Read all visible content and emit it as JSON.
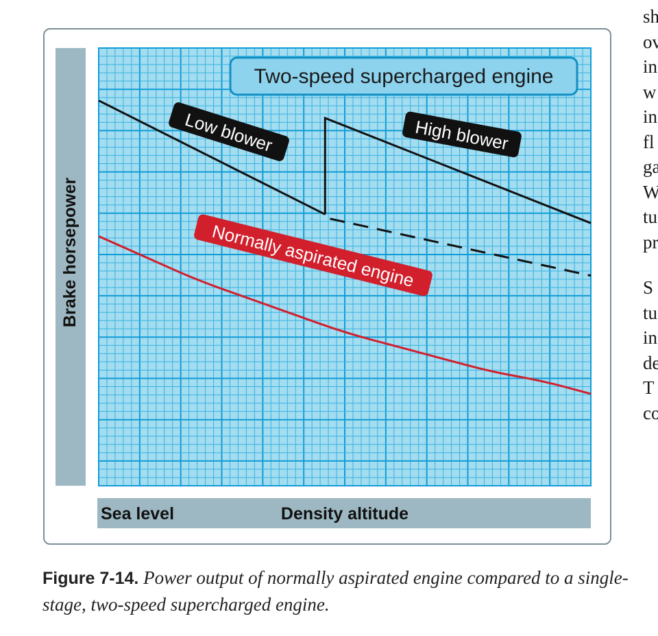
{
  "chart_data": {
    "type": "line",
    "title": "Two-speed supercharged engine",
    "xlabel": "Density altitude",
    "ylabel": "Brake horsepower",
    "x_start_label": "Sea level",
    "xlim": [
      0,
      100
    ],
    "ylim": [
      0,
      100
    ],
    "grid": true,
    "series": [
      {
        "name": "Low blower",
        "style": "solid",
        "color": "#111111",
        "x": [
          0,
          46
        ],
        "y": [
          88,
          62
        ]
      },
      {
        "name": "High blower",
        "style": "solid",
        "color": "#111111",
        "x": [
          46,
          46,
          100
        ],
        "y": [
          62,
          84,
          60
        ]
      },
      {
        "name": "Low blower (continued)",
        "style": "dashed",
        "color": "#111111",
        "x": [
          47,
          100
        ],
        "y": [
          61,
          48
        ]
      },
      {
        "name": "Normally aspirated engine",
        "style": "solid",
        "color": "#d11f2c",
        "x": [
          0,
          10,
          20,
          30,
          40,
          50,
          60,
          70,
          80,
          90,
          100
        ],
        "y": [
          57,
          52,
          47,
          43,
          39,
          35,
          32,
          29,
          26,
          24,
          21
        ]
      }
    ]
  },
  "figure": {
    "caption_number": "Figure 7-14.",
    "caption_text": "Power output of normally aspirated engine compared to a single-stage, two-speed supercharged engine."
  },
  "body_text_fragments": [
    "sh",
    "ov",
    "in",
    "w",
    "in",
    "fl",
    "ga",
    "W",
    "tu",
    "pr",
    "S",
    "tu",
    "in",
    "de",
    "T",
    "co"
  ],
  "colors": {
    "plot_bg": "#a4dcf0",
    "grid_major": "#0f9dd6",
    "grid_minor": "#37b3e2",
    "axis_bar": "#9db8c2",
    "title_box_bg": "#8dd3ee",
    "title_box_border": "#1190c4",
    "label_black": "#111111",
    "label_red": "#d11f2c"
  }
}
